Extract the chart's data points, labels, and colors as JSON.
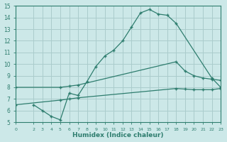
{
  "xlabel": "Humidex (Indice chaleur)",
  "bg_color": "#cce8e8",
  "grid_color": "#aacccc",
  "line_color": "#2e7d6e",
  "xlim": [
    0,
    23
  ],
  "ylim": [
    5,
    15
  ],
  "xticks": [
    0,
    2,
    3,
    4,
    5,
    6,
    7,
    8,
    9,
    10,
    11,
    12,
    13,
    14,
    15,
    16,
    17,
    18,
    19,
    20,
    21,
    22,
    23
  ],
  "yticks": [
    5,
    6,
    7,
    8,
    9,
    10,
    11,
    12,
    13,
    14,
    15
  ],
  "line1_x": [
    2,
    3,
    4,
    5,
    6,
    7,
    8,
    9,
    10,
    11,
    12,
    13,
    14,
    15,
    16,
    17,
    18,
    22,
    23
  ],
  "line1_y": [
    6.5,
    6.0,
    5.5,
    5.2,
    7.5,
    7.3,
    8.5,
    9.8,
    10.7,
    11.2,
    12.0,
    13.2,
    14.4,
    14.7,
    14.3,
    14.2,
    13.5,
    8.8,
    8.0
  ],
  "line2_x": [
    0,
    5,
    6,
    7,
    18,
    19,
    20,
    21,
    22,
    23
  ],
  "line2_y": [
    8.0,
    8.0,
    8.1,
    8.2,
    10.2,
    9.4,
    9.0,
    8.8,
    8.7,
    8.6
  ],
  "line3_x": [
    0,
    5,
    6,
    7,
    18,
    19,
    20,
    21,
    22,
    23
  ],
  "line3_y": [
    6.5,
    6.9,
    7.0,
    7.1,
    7.9,
    7.85,
    7.8,
    7.8,
    7.8,
    7.9
  ]
}
